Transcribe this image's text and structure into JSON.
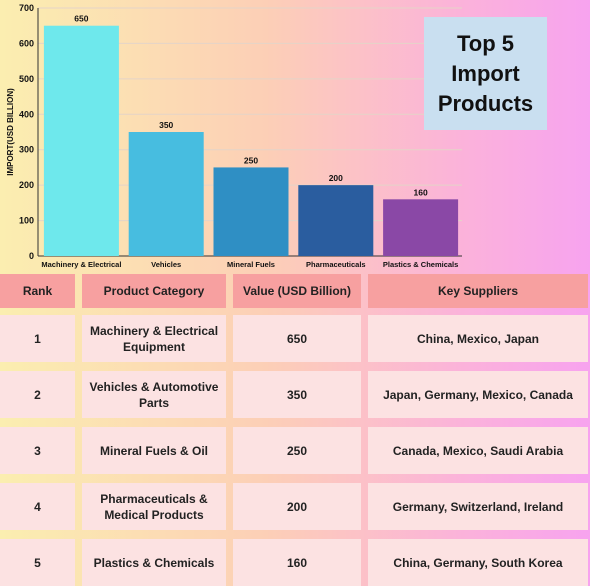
{
  "chart_data": {
    "type": "bar",
    "title": [
      "Top 5",
      "Import",
      "Products"
    ],
    "ylabel": "IMPORT(USD BILLION)",
    "xlabel": "",
    "ylim": [
      0,
      700
    ],
    "yticks": [
      0,
      100,
      200,
      300,
      400,
      500,
      600,
      700
    ],
    "grid": true,
    "categories": [
      "Machinery & Electrical",
      "Vehicles",
      "Mineral Fuels",
      "Pharmaceuticals",
      "Plastics & Chemicals"
    ],
    "values": [
      650,
      350,
      250,
      200,
      160
    ],
    "colors": [
      "#6ee8ec",
      "#47bde0",
      "#2f8fc4",
      "#2a5d9f",
      "#8a48a6"
    ]
  },
  "table": {
    "headers": [
      "Rank",
      "Product Category",
      "Value (USD Billion)",
      "Key Suppliers"
    ],
    "rows": [
      [
        "1",
        "Machinery & Electrical Equipment",
        "650",
        "China, Mexico, Japan"
      ],
      [
        "2",
        "Vehicles & Automotive Parts",
        "350",
        "Japan, Germany, Mexico, Canada"
      ],
      [
        "3",
        "Mineral Fuels & Oil",
        "250",
        "Canada, Mexico, Saudi Arabia"
      ],
      [
        "4",
        "Pharmaceuticals & Medical Products",
        "200",
        "Germany, Switzerland, Ireland"
      ],
      [
        "5",
        "Plastics & Chemicals",
        "160",
        "China, Germany, South Korea"
      ]
    ]
  }
}
